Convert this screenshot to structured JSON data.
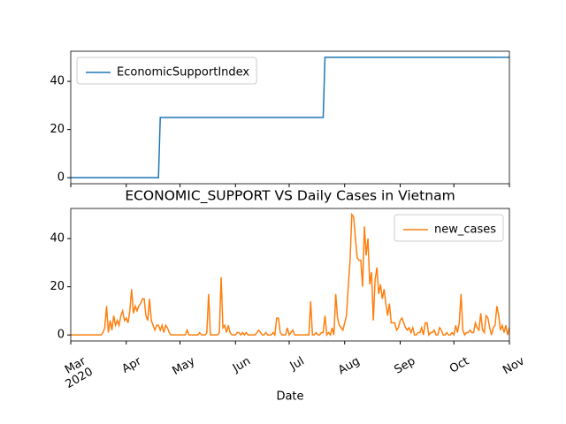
{
  "chart_data": [
    {
      "type": "line",
      "xlim": [
        0,
        245
      ],
      "ylim": [
        -2.5,
        52.5
      ],
      "yticks": [
        0,
        20,
        40
      ],
      "legend": "upper left",
      "series": [
        {
          "name": "EconomicSupportIndex",
          "color": "#1f77b4",
          "x": [
            0,
            49,
            50,
            141,
            142,
            245
          ],
          "values": [
            0,
            0,
            25,
            25,
            50,
            50
          ]
        }
      ]
    },
    {
      "type": "line",
      "title": "ECONOMIC_SUPPORT VS Daily Cases in Vietnam",
      "xlabel": "Date",
      "xlim": [
        0,
        245
      ],
      "ylim": [
        -2.5,
        52.5
      ],
      "yticks": [
        0,
        20,
        40
      ],
      "legend": "upper right",
      "xticks": [
        {
          "value": 0,
          "label": "Mar"
        },
        {
          "value": 31,
          "label": "Apr"
        },
        {
          "value": 61,
          "label": "May"
        },
        {
          "value": 92,
          "label": "Jun"
        },
        {
          "value": 122,
          "label": "Jul"
        },
        {
          "value": 153,
          "label": "Aug"
        },
        {
          "value": 184,
          "label": "Sep"
        },
        {
          "value": 214,
          "label": "Oct"
        },
        {
          "value": 245,
          "label": "Nov"
        }
      ],
      "x_year_label": "2020",
      "series": [
        {
          "name": "new_cases",
          "color": "#ff7f0e",
          "values": [
            0,
            0,
            0,
            0,
            0,
            0,
            0,
            0,
            0,
            0,
            0,
            0,
            0,
            0,
            0,
            0,
            0,
            0,
            1,
            3,
            12,
            1,
            6,
            2,
            8,
            4,
            6,
            4,
            8,
            10,
            6,
            7,
            5,
            10,
            19,
            9,
            12,
            10,
            12,
            13,
            15,
            15,
            8,
            6,
            15,
            6,
            4,
            2,
            4,
            4,
            2,
            4,
            1,
            4,
            3,
            1,
            0,
            0,
            0,
            0,
            0,
            0,
            0,
            0,
            0,
            2,
            0,
            0,
            0,
            0,
            0,
            0,
            1,
            0,
            0,
            0,
            1,
            17,
            0,
            0,
            0,
            0,
            0,
            1,
            24,
            3,
            4,
            1,
            4,
            1,
            0,
            0,
            0,
            1,
            1,
            0,
            1,
            0,
            1,
            0,
            0,
            0,
            0,
            0,
            1,
            2,
            1,
            0,
            0,
            1,
            0,
            0,
            0,
            1,
            0,
            7,
            7,
            1,
            0,
            0,
            0,
            3,
            0,
            1,
            2,
            0,
            0,
            0,
            0,
            0,
            0,
            0,
            0,
            0,
            14,
            0,
            0,
            1,
            0,
            0,
            1,
            1,
            8,
            0,
            1,
            0,
            3,
            0,
            17,
            7,
            4,
            3,
            2,
            5,
            8,
            20,
            31,
            50,
            49,
            40,
            32,
            31,
            31,
            20,
            45,
            33,
            40,
            21,
            26,
            6,
            23,
            28,
            17,
            21,
            15,
            19,
            13,
            8,
            13,
            5,
            5,
            5,
            2,
            3,
            6,
            7,
            5,
            3,
            2,
            3,
            1,
            3,
            0,
            0,
            1,
            1,
            3,
            0,
            5,
            5,
            0,
            1,
            1,
            2,
            0,
            0,
            3,
            2,
            0,
            0,
            1,
            0,
            0,
            1,
            0,
            4,
            1,
            5,
            17,
            2,
            0,
            1,
            1,
            2,
            1,
            1,
            5,
            3,
            2,
            9,
            2,
            1,
            8,
            7,
            3,
            0,
            3,
            4,
            12,
            8,
            2,
            4,
            1,
            4,
            0,
            3
          ]
        }
      ]
    }
  ]
}
